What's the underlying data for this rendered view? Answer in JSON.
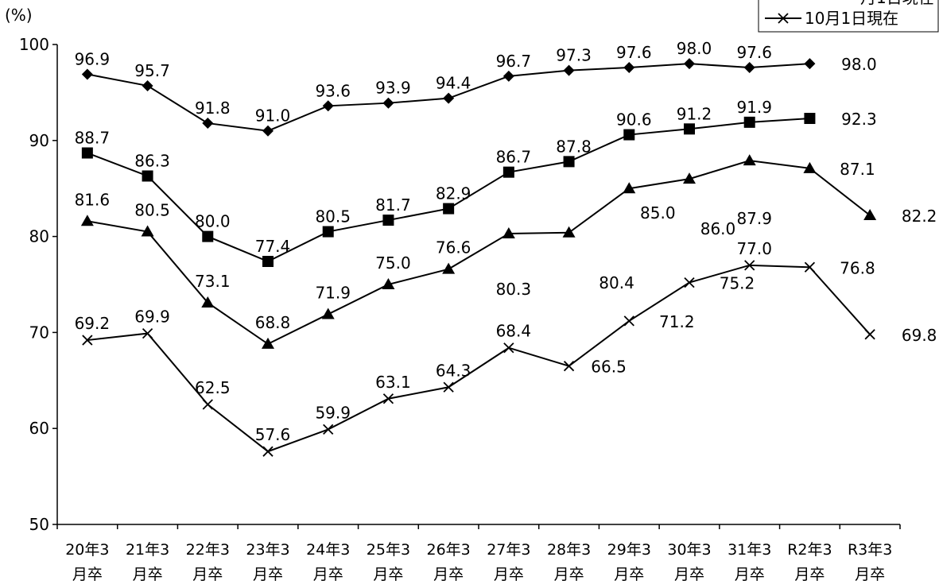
{
  "chart_data": {
    "type": "line",
    "title": "",
    "ylabel": "(%)",
    "xlabel": "",
    "ylim": [
      50,
      100
    ],
    "yticks": [
      50,
      60,
      70,
      80,
      90,
      100
    ],
    "grid": false,
    "legend_position": "top-right",
    "categories": [
      [
        "20年3",
        "月卒"
      ],
      [
        "21年3",
        "月卒"
      ],
      [
        "22年3",
        "月卒"
      ],
      [
        "23年3",
        "月卒"
      ],
      [
        "24年3",
        "月卒"
      ],
      [
        "25年3",
        "月卒"
      ],
      [
        "26年3",
        "月卒"
      ],
      [
        "27年3",
        "月卒"
      ],
      [
        "28年3",
        "月卒"
      ],
      [
        "29年3",
        "月卒"
      ],
      [
        "30年3",
        "月卒"
      ],
      [
        "31年3",
        "月卒"
      ],
      [
        "R2年3",
        "月卒"
      ],
      [
        "R3年3",
        "月卒"
      ]
    ],
    "series": [
      {
        "name": "",
        "marker": "diamond",
        "values": [
          96.9,
          95.7,
          91.8,
          91.0,
          93.6,
          93.9,
          94.4,
          96.7,
          97.3,
          97.6,
          98.0,
          97.6,
          98.0,
          null
        ]
      },
      {
        "name": "",
        "marker": "square",
        "values": [
          88.7,
          86.3,
          80.0,
          77.4,
          80.5,
          81.7,
          82.9,
          86.7,
          87.8,
          90.6,
          91.2,
          91.9,
          92.3,
          null
        ]
      },
      {
        "name": "",
        "marker": "triangle",
        "values": [
          81.6,
          80.5,
          73.1,
          68.8,
          71.9,
          75.0,
          76.6,
          80.3,
          80.4,
          85.0,
          86.0,
          87.9,
          87.1,
          82.2
        ]
      },
      {
        "name": "10月1日現在",
        "marker": "x",
        "values": [
          69.2,
          69.9,
          62.5,
          57.6,
          59.9,
          63.1,
          64.3,
          68.4,
          66.5,
          71.2,
          75.2,
          77.0,
          76.8,
          69.8
        ]
      }
    ],
    "legend": {
      "partial_label": "月1日現在",
      "label": "10月1日現在"
    }
  }
}
